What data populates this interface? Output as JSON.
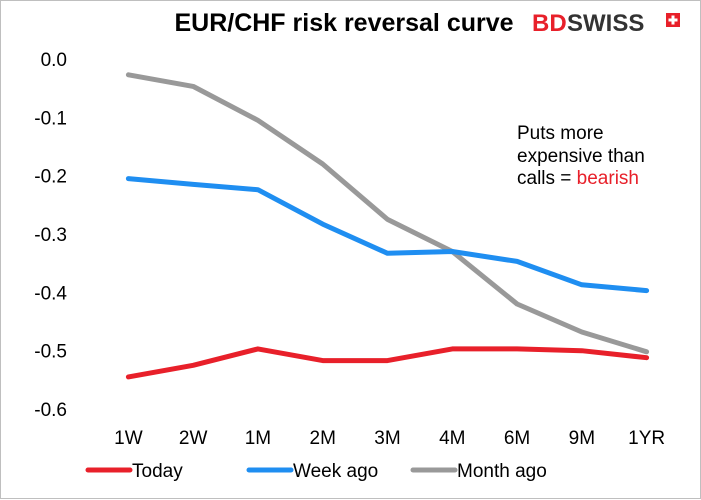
{
  "chart_data": {
    "type": "line",
    "title": "EUR/CHF risk reversal curve",
    "categories": [
      "1W",
      "2W",
      "1M",
      "2M",
      "3M",
      "4M",
      "6M",
      "9M",
      "1YR"
    ],
    "ylim": [
      -0.6,
      0.0
    ],
    "yticks": [
      "0.0",
      "-0.1",
      "-0.2",
      "-0.3",
      "-0.4",
      "-0.5",
      "-0.6"
    ],
    "grid": false,
    "legend_position": "bottom",
    "series": [
      {
        "name": "Today",
        "color": "#e8202a",
        "values": [
          -0.545,
          -0.525,
          -0.497,
          -0.517,
          -0.517,
          -0.497,
          -0.497,
          -0.5,
          -0.512
        ]
      },
      {
        "name": "Week ago",
        "color": "#1f8ef1",
        "values": [
          -0.205,
          -0.215,
          -0.224,
          -0.283,
          -0.333,
          -0.33,
          -0.347,
          -0.387,
          -0.397
        ]
      },
      {
        "name": "Month ago",
        "color": "#999999",
        "values": [
          -0.027,
          -0.047,
          -0.105,
          -0.18,
          -0.275,
          -0.33,
          -0.42,
          -0.468,
          -0.502
        ]
      }
    ],
    "annotation": {
      "lines": [
        "Puts more",
        "expensive than"
      ],
      "last_line_prefix": "calls = ",
      "last_line_highlight": "bearish",
      "highlight_color": "#e8202a"
    }
  },
  "logo": {
    "part1": "BD",
    "part2": "SWISS",
    "part1_color": "#e8202a",
    "part2_color": "#333333"
  }
}
